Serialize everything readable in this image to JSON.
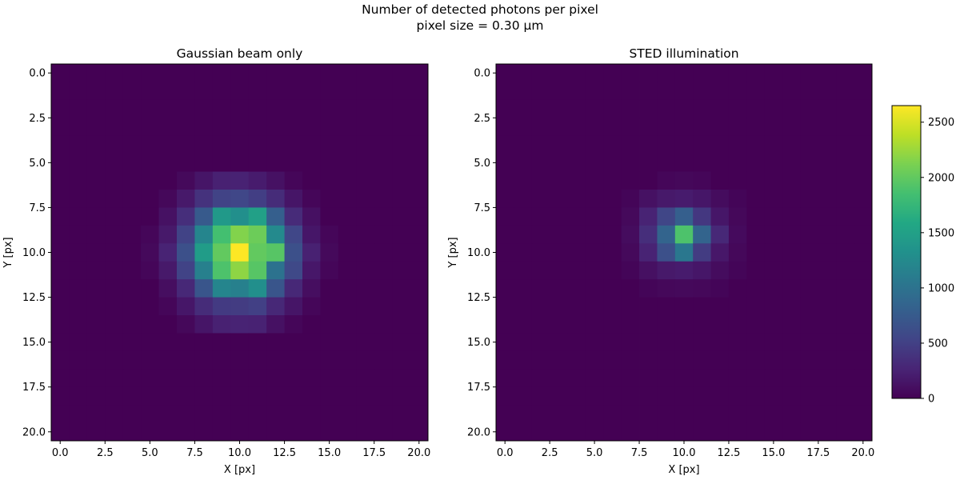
{
  "figure": {
    "suptitle_line1": "Number of detected photons per pixel",
    "suptitle_line2": "pixel size = 0.30 μm"
  },
  "colorbar": {
    "min": 0,
    "max": 2650,
    "ticks": [
      0,
      500,
      1000,
      1500,
      2000,
      2500
    ],
    "colormap": "viridis"
  },
  "chart_data": [
    {
      "type": "heatmap",
      "title": "Gaussian beam only",
      "xlabel": "X [px]",
      "ylabel": "Y [px]",
      "grid_size": 21,
      "xlim": [
        -0.5,
        20.5
      ],
      "ylim": [
        20.5,
        -0.5
      ],
      "xticks": [
        "0.0",
        "2.5",
        "5.0",
        "7.5",
        "10.0",
        "12.5",
        "15.0",
        "17.5",
        "20.0"
      ],
      "yticks": [
        "0.0",
        "2.5",
        "5.0",
        "7.5",
        "10.0",
        "12.5",
        "15.0",
        "17.5",
        "20.0"
      ],
      "row_offset": 5,
      "col_offset": 5,
      "values": [
        [
          0,
          0,
          0,
          0,
          0,
          0,
          0,
          0,
          0,
          0,
          0
        ],
        [
          0,
          0,
          60,
          150,
          240,
          250,
          200,
          120,
          40,
          0,
          0
        ],
        [
          0,
          50,
          180,
          380,
          520,
          560,
          480,
          330,
          150,
          40,
          0
        ],
        [
          0,
          120,
          350,
          750,
          1420,
          1300,
          1500,
          800,
          320,
          110,
          0
        ],
        [
          40,
          180,
          520,
          1200,
          1850,
          2150,
          2050,
          1250,
          560,
          160,
          40
        ],
        [
          60,
          260,
          650,
          1450,
          2000,
          2650,
          2000,
          1950,
          650,
          240,
          60
        ],
        [
          40,
          180,
          520,
          1150,
          1900,
          2200,
          1950,
          1000,
          580,
          170,
          40
        ],
        [
          0,
          100,
          300,
          700,
          1200,
          1150,
          1300,
          700,
          300,
          100,
          0
        ],
        [
          0,
          40,
          160,
          330,
          450,
          460,
          500,
          300,
          150,
          40,
          0
        ],
        [
          0,
          0,
          50,
          150,
          240,
          260,
          250,
          120,
          40,
          0,
          0
        ],
        [
          0,
          0,
          0,
          0,
          0,
          0,
          0,
          0,
          0,
          0,
          0
        ]
      ]
    },
    {
      "type": "heatmap",
      "title": "STED illumination",
      "xlabel": "X [px]",
      "ylabel": "Y [px]",
      "grid_size": 21,
      "xlim": [
        -0.5,
        20.5
      ],
      "ylim": [
        20.5,
        -0.5
      ],
      "xticks": [
        "0.0",
        "2.5",
        "5.0",
        "7.5",
        "10.0",
        "12.5",
        "15.0",
        "17.5",
        "20.0"
      ],
      "yticks": [
        "0.0",
        "2.5",
        "5.0",
        "7.5",
        "10.0",
        "12.5",
        "15.0",
        "17.5",
        "20.0"
      ],
      "row_offset": 6,
      "col_offset": 6,
      "values": [
        [
          0,
          0,
          0,
          40,
          50,
          40,
          0,
          0,
          0
        ],
        [
          0,
          30,
          120,
          180,
          200,
          160,
          80,
          30,
          0
        ],
        [
          0,
          60,
          260,
          550,
          800,
          420,
          160,
          50,
          0
        ],
        [
          0,
          80,
          350,
          850,
          1900,
          850,
          300,
          70,
          0
        ],
        [
          0,
          60,
          260,
          650,
          1050,
          460,
          170,
          50,
          0
        ],
        [
          0,
          30,
          110,
          180,
          200,
          160,
          80,
          30,
          0
        ],
        [
          0,
          0,
          30,
          50,
          60,
          50,
          30,
          0,
          0
        ],
        [
          0,
          0,
          0,
          0,
          0,
          0,
          0,
          0,
          0
        ]
      ]
    }
  ]
}
